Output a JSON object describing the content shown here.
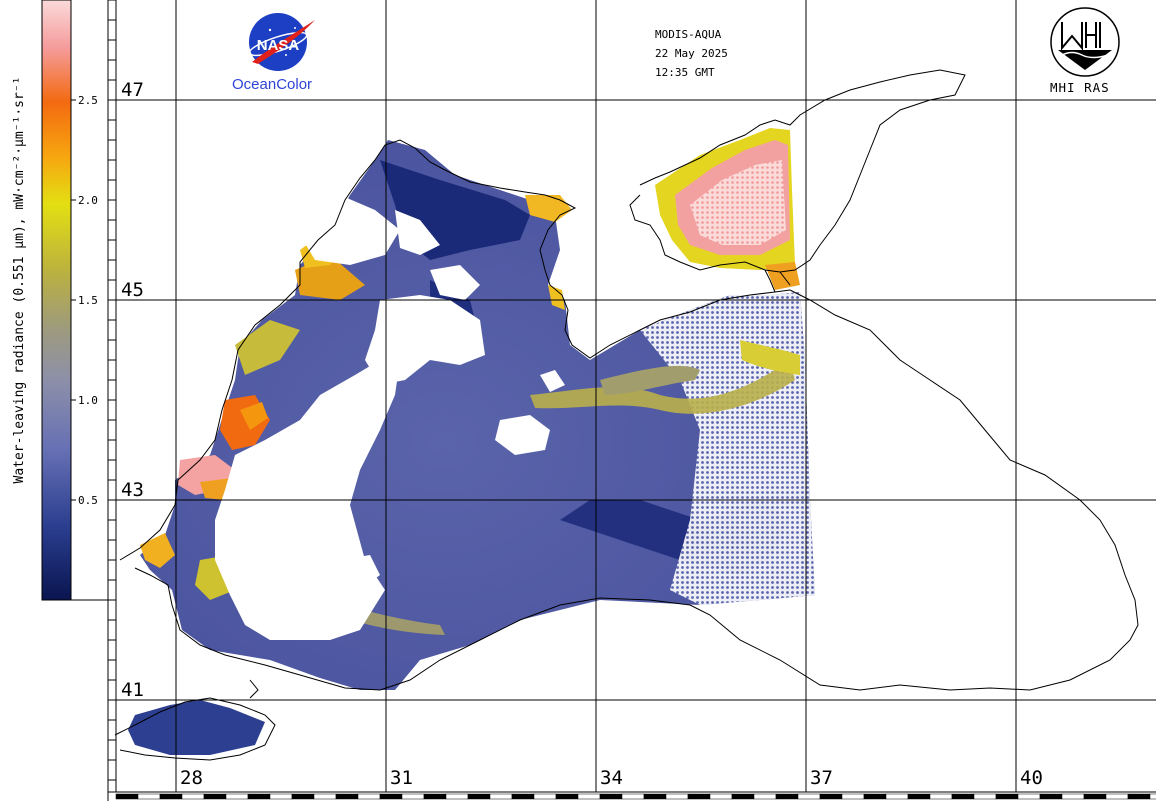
{
  "header": {
    "sensor": "MODIS-AQUA",
    "date": "22 May 2025",
    "time": "12:35 GMT"
  },
  "logos": {
    "nasa_text": "NASA",
    "oceancolor": "OceanColor",
    "mhi": "MHI RAS"
  },
  "colorbar": {
    "title": "Water-leaving radiance (0.551 µm), mW·cm⁻²·µm⁻¹·sr⁻¹",
    "ticks": [
      "2.5",
      "2.0",
      "1.5",
      "1.0",
      "0.5"
    ],
    "colors": [
      "#0a1550",
      "#2a3d8e",
      "#6670b4",
      "#8e90a8",
      "#9d9a7e",
      "#bcb23e",
      "#e3df12",
      "#f7a510",
      "#f36a10",
      "#f59b9b",
      "#fbdada"
    ]
  },
  "grid": {
    "latitudes": [
      "47",
      "45",
      "43",
      "41"
    ],
    "longitudes": [
      "28",
      "31",
      "34",
      "37",
      "40"
    ]
  }
}
